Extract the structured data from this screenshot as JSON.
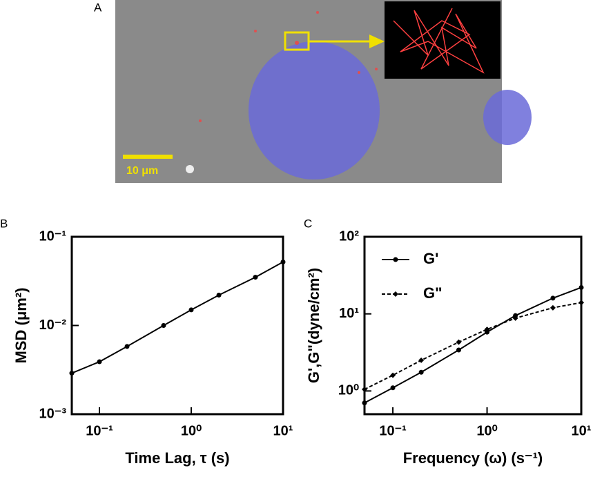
{
  "image_panel": {
    "label": "A",
    "scale_bar": "10 μm"
  },
  "chart_data": [
    {
      "type": "line",
      "panel_label": "B",
      "x_label": "Time Lag, τ (s)",
      "y_label": "MSD (μm²)",
      "log_x": true,
      "log_y": true,
      "color": "#000000",
      "marker": "circle",
      "x": [
        0.05,
        0.1,
        0.2,
        0.5,
        1,
        2,
        5,
        10
      ],
      "values": [
        0.0029,
        0.0039,
        0.0058,
        0.01,
        0.015,
        0.022,
        0.035,
        0.052
      ],
      "xlim": [
        0.05,
        10
      ],
      "ylim": [
        0.001,
        0.1
      ],
      "xticks": [
        {
          "value": 0.1,
          "label": "10⁻¹"
        },
        {
          "value": 1,
          "label": "10⁰"
        },
        {
          "value": 10,
          "label": "10¹"
        }
      ],
      "yticks": [
        {
          "value": 0.001,
          "label": "10⁻³"
        },
        {
          "value": 0.01,
          "label": "10⁻²"
        },
        {
          "value": 0.1,
          "label": "10⁻¹"
        }
      ]
    },
    {
      "type": "line",
      "panel_label": "C",
      "x_label": "Frequency (ω) (s⁻¹)",
      "y_label": "G',G\"(dyne/cm²)",
      "log_x": true,
      "log_y": true,
      "legend": "upper left",
      "x": [
        0.05,
        0.1,
        0.2,
        0.5,
        1,
        2,
        5,
        10
      ],
      "series": [
        {
          "name": "G'",
          "color": "#000000",
          "marker": "circle",
          "line_style": "solid",
          "values": [
            0.7,
            1.1,
            1.75,
            3.4,
            5.8,
            9.5,
            16,
            22
          ]
        },
        {
          "name": "G\"",
          "color": "#000000",
          "marker": "diamond",
          "line_style": "dashed",
          "values": [
            1.05,
            1.6,
            2.5,
            4.3,
            6.3,
            8.8,
            12,
            14
          ]
        }
      ],
      "xlim": [
        0.05,
        10
      ],
      "ylim": [
        0.5,
        100
      ],
      "xticks": [
        {
          "value": 0.1,
          "label": "10⁻¹"
        },
        {
          "value": 1,
          "label": "10⁰"
        },
        {
          "value": 10,
          "label": "10¹"
        }
      ],
      "yticks": [
        {
          "value": 1,
          "label": "10⁰"
        },
        {
          "value": 10,
          "label": "10¹"
        },
        {
          "value": 100,
          "label": "10²"
        }
      ]
    }
  ]
}
